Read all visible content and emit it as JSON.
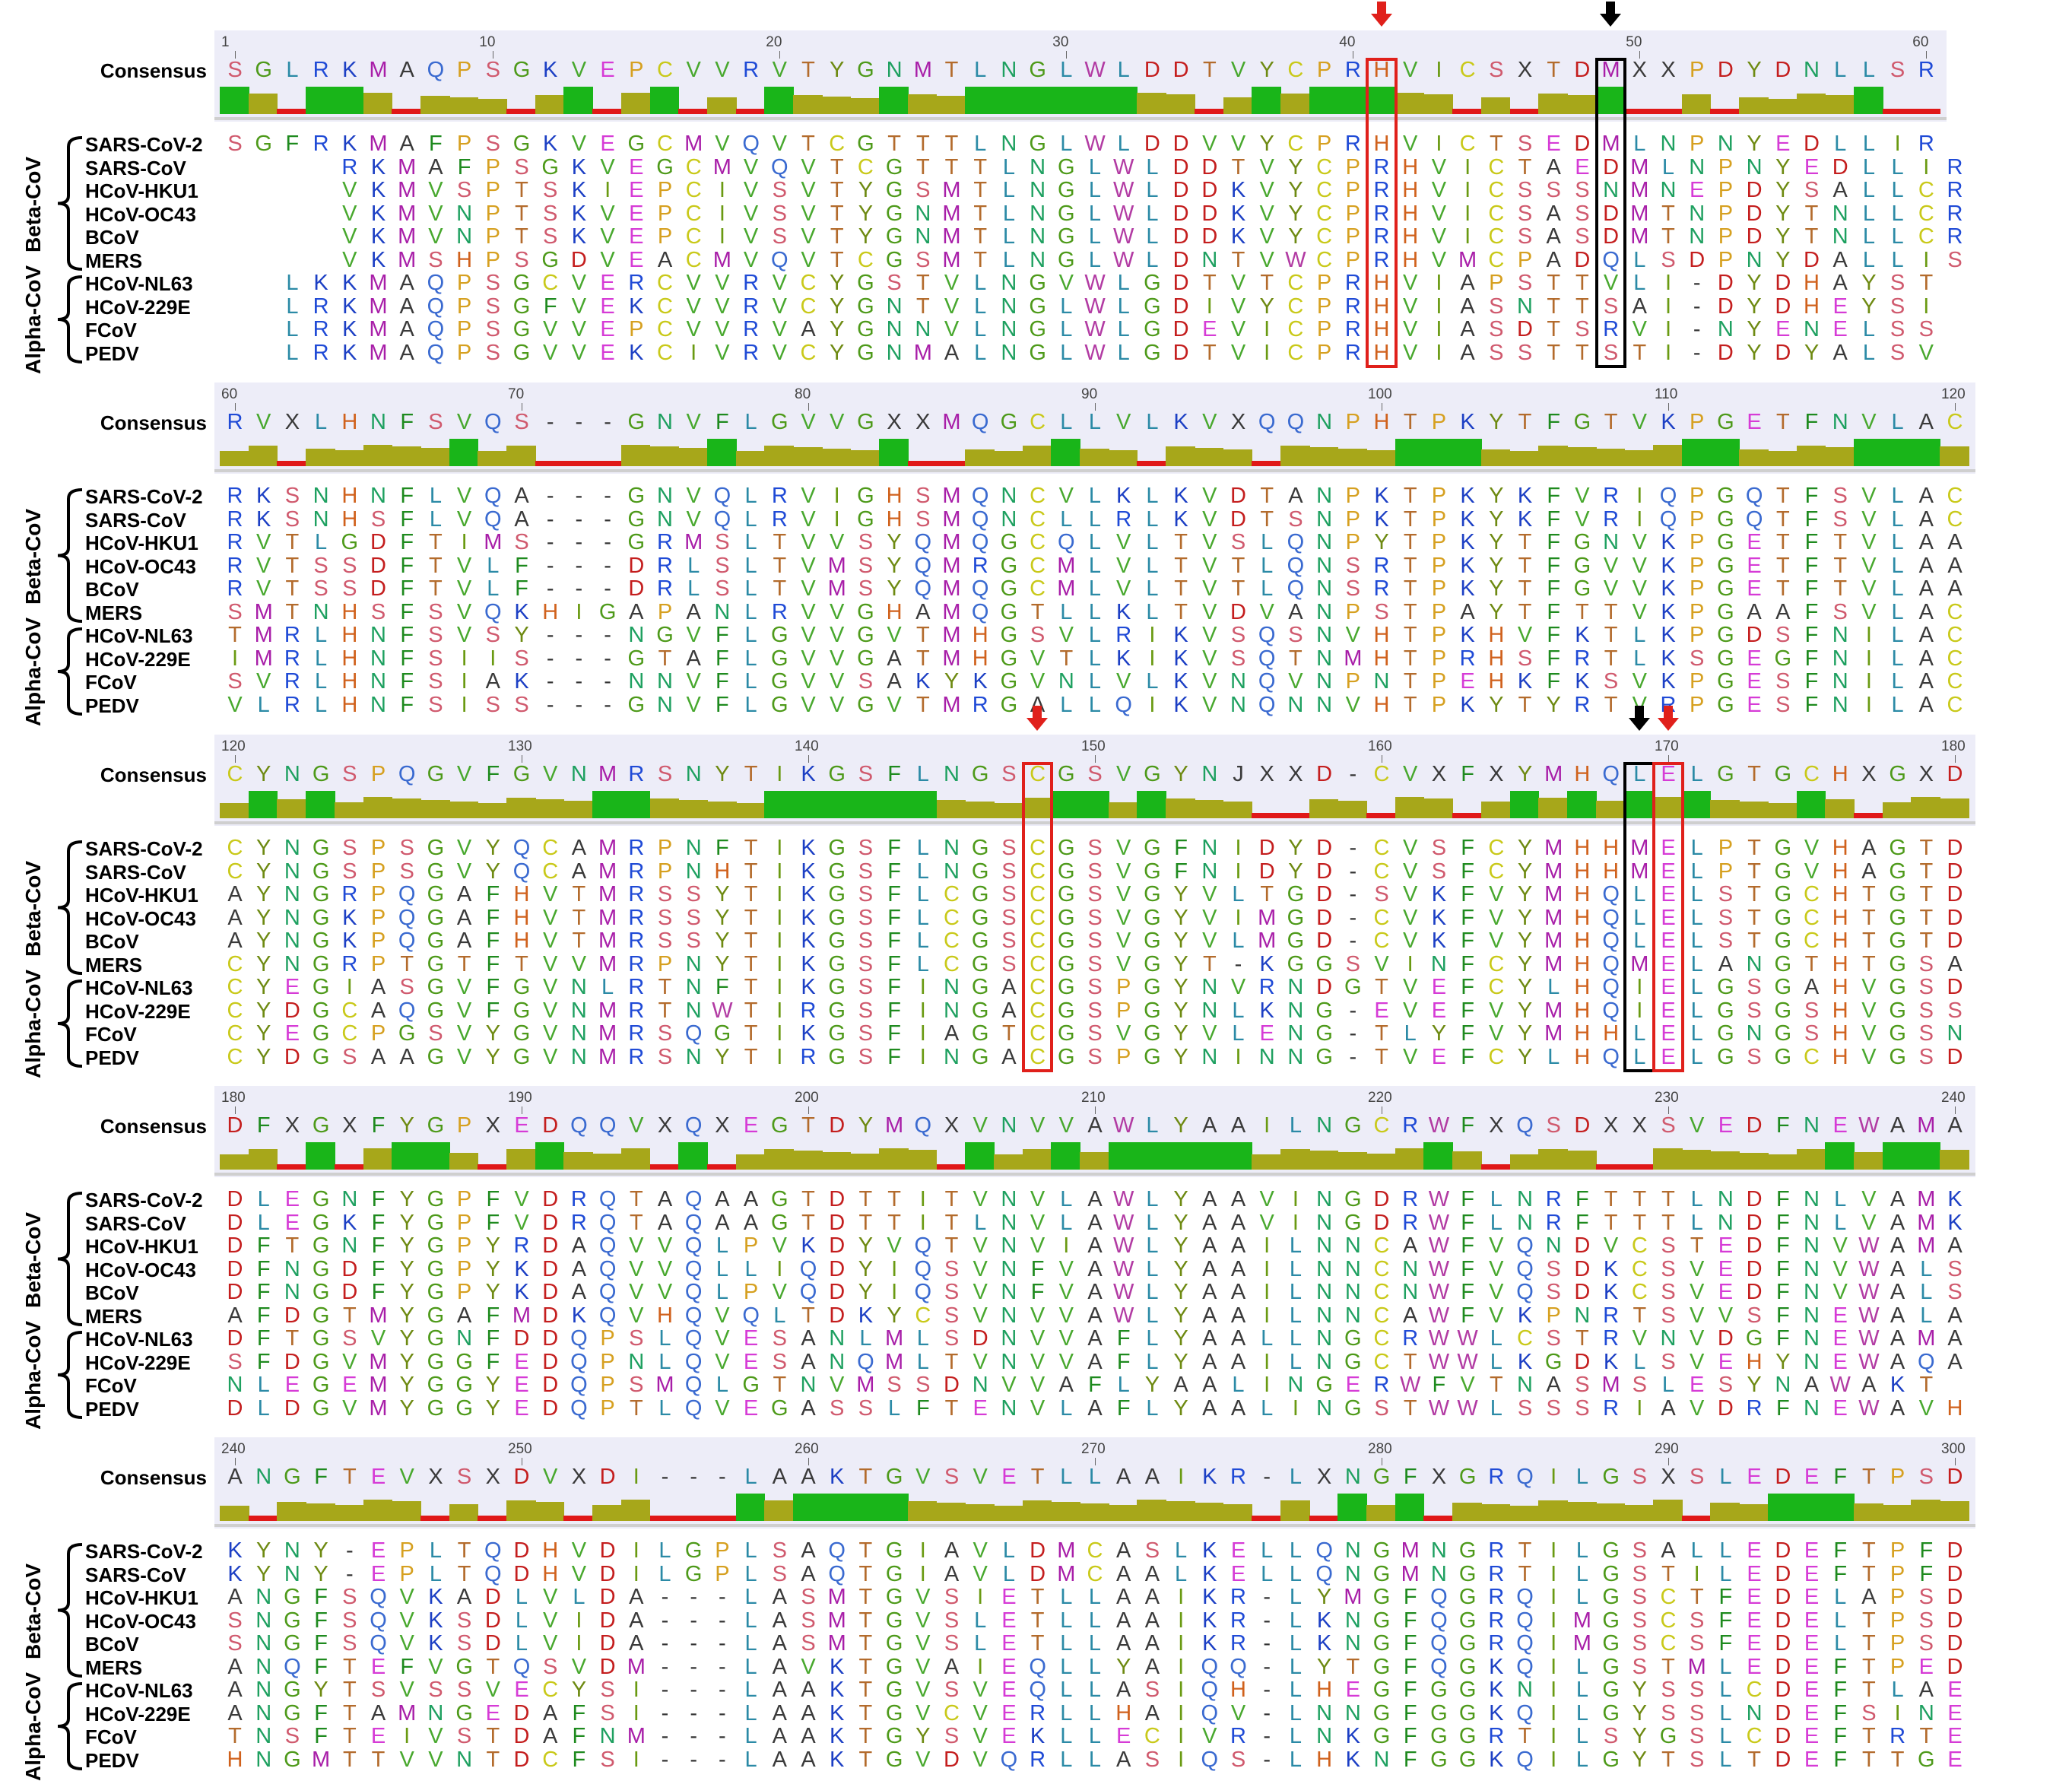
{
  "consensus_label": "Consensus",
  "groups": [
    {
      "name": "Beta-CoV",
      "members": [
        0,
        5
      ]
    },
    {
      "name": "Alpha-CoV",
      "members": [
        6,
        9
      ]
    }
  ],
  "sequence_names": [
    "SARS-CoV-2",
    "SARS-CoV",
    "HCoV-HKU1",
    "HCoV-OC43",
    "BCoV",
    "MERS",
    "HCoV-NL63",
    "HCoV-229E",
    "FCoV",
    "PEDV"
  ],
  "blocks": [
    {
      "start": 1,
      "ruler": [
        {
          "label": "1",
          "col": 0
        },
        {
          "label": "10",
          "col": 9
        },
        {
          "label": "20",
          "col": 19
        },
        {
          "label": "30",
          "col": 29
        },
        {
          "label": "40",
          "col": 39
        },
        {
          "label": "50",
          "col": 49
        },
        {
          "label": "60",
          "col": 59
        }
      ],
      "consensus": "SGLRKMAQPSGKVEPCVVRVTYGNMTLNGLWLDDTVYCPRHVICSXTDMXXPDYDNLLSR",
      "seqs": [
        "SGFRKMAFPSGKVEGCMVQVTCGTTTLNGLWLDDVVYCPRHVICTSEDMLNPNYEDLLIR",
        "    RKMAFPSGKVEGCMVQVTCGTTTLNGLWLDDTVYCPRHVICTAEDMLNPNYEDLLIR",
        "    VKMVSPTSKIEPCIVSVTYGSMTLNGLWLDDKVYCPRHVICSSSNMNEPDYSALLCR",
        "    VKMVNPTSKVEPCIVSVTYGNMTLNGLWLDDKVYCPRHVICSASDMTNPDYTNLLCR",
        "    VKMVNPTSKVEPCIVSVTYGNMTLNGLWLDDKVYCPRHVICSASDMTNPDYTNLLCR",
        "    VKMSHPSGDVEACMVQVTCGSMTLNGLWLDNTVWCPRHVMCPADQLSDPNYDALLIS",
        "  LKKMAQPSGCVERCVVRVCYGSTVLNGVWLGDTVTCPRHVIAPSTTVLI-DYDHAYST",
        "  LRKMAQPSGFVEKCVVRVCYGNTVLNGLWLGDIVYCPRHVIASNTTSAI-DYDHEYSI",
        "  LRKMAQPSGVVEPCVVRVAYGNNVLNGLWLGDEVICPRHVIASDTSRVI-NYENELSS",
        "  LRKMAQPSGVVEKCIVRVCYGNMALNGLWLGDTVICPRHVIASSTTSTI-DYDYALSV"
      ],
      "cons_bars": [
        2,
        1,
        0,
        2,
        2,
        1,
        0,
        1,
        1,
        1,
        0,
        1,
        2,
        0,
        1,
        2,
        0,
        1,
        0,
        2,
        1,
        1,
        1,
        2,
        1,
        1,
        2,
        2,
        2,
        2,
        2,
        2,
        1,
        1,
        0,
        1,
        2,
        1,
        2,
        2,
        2,
        1,
        1,
        0,
        1,
        0,
        1,
        1,
        2,
        0,
        0,
        1,
        0,
        1,
        1,
        1,
        1,
        2,
        0,
        0
      ],
      "highlights": [
        {
          "col": 40,
          "color": "#e0201b",
          "arrow": "#e0201b"
        },
        {
          "col": 48,
          "color": "#000000",
          "arrow": "#000000"
        }
      ]
    },
    {
      "start": 60,
      "ruler": [
        {
          "label": "60",
          "col": 0
        },
        {
          "label": "70",
          "col": 10
        },
        {
          "label": "80",
          "col": 20
        },
        {
          "label": "90",
          "col": 30
        },
        {
          "label": "100",
          "col": 40
        },
        {
          "label": "110",
          "col": 50
        },
        {
          "label": "120",
          "col": 60
        }
      ],
      "consensus": "RVXLHNFSVQS---GNVFLGVVGXXMQGCLLVLKVXQQNPHTPKYTFGTVKPGETFNVLAC",
      "seqs": [
        "RKSNHNFLVQA---GNVQLRVIGHSMQNCVLKLKVDTANPKTPKYKFVRIQPGQTFSVLAC",
        "RKSNHSFLVQA---GNVQLRVIGHSMQNCLLRLKVDTSNPKTPKYKFVRIQPGQTFSVLAC",
        "RVTLGDFTIMS---GRMSLTVVSYQMQGCQLVLTVSLQNPYTPKYTFGNVKPGETFTVLAA",
        "RVTSSDFTVLF---DRLSLTVMSYQMRGCMLVLTVTLQNSRTPKYTFGVVKPGETFTVLAA",
        "RVTSSDFTVLF---DRLSLTVMSYQMQGCMLVLTVTLQNSRTPKYTFGVVKPGETFTVLAA",
        "SMTNHSFSVQKHIGAPANLRVVGHAMQGTLLKLTVDVANPSTPAYTFTTVKPGAAFSVLAC",
        "TMRLHNFSVSY---NGVFLGVVGVTMHGSVLRIKVSQSNVHTPKHVFKTLKPGDSFNILAC",
        "IMRLHNFSIIS---GTAFLGVVGATMHGVTLKIKVSQTNMHTPRHSFRTLKSGEGFNILAC",
        "SVRLHNFSIAK---NNVFLGVVSAKYKGVNLVLKVNQVNPNTPEHKFKSVKPGESFNILAC",
        "VLRLHNFSISS---GNVFLGVVGVTMRGALLQIKVNQNNVHTPKYTYRTVRPGESFNILAC"
      ],
      "cons_bars": [
        1,
        1,
        0,
        1,
        1,
        1,
        1,
        1,
        2,
        1,
        1,
        0,
        0,
        0,
        1,
        1,
        1,
        2,
        1,
        1,
        1,
        1,
        1,
        2,
        0,
        0,
        1,
        1,
        1,
        2,
        1,
        1,
        0,
        1,
        1,
        1,
        0,
        1,
        1,
        1,
        1,
        2,
        2,
        2,
        1,
        1,
        1,
        1,
        1,
        1,
        1,
        2,
        2,
        1,
        1,
        1,
        1,
        2,
        2,
        2,
        1
      ],
      "highlights": []
    },
    {
      "start": 120,
      "ruler": [
        {
          "label": "120",
          "col": 0
        },
        {
          "label": "130",
          "col": 10
        },
        {
          "label": "140",
          "col": 20
        },
        {
          "label": "150",
          "col": 30
        },
        {
          "label": "160",
          "col": 40
        },
        {
          "label": "170",
          "col": 50
        },
        {
          "label": "180",
          "col": 60
        }
      ],
      "consensus": "CYNGSPQGVFGVNMRSNYTIKGSFLNGSCGSVGYNJXXD-CVXFXYMHQLELGTGCHXGXD",
      "seqs": [
        "CYNGSPSGVYQCAMRPNFTIKGSFLNGSCGSVGFNIDYD-CVSFCYMHHMELPTGVHAGTD",
        "CYNGSPSGVYQCAMRPNHTIKGSFLNGSCGSVGFNIDYD-CVSFCYMHHMELPTGVHAGTD",
        "AYNGRPQGAFHVTMRSSYTIKGSFLCGSCGSVGYVLTGD-SVKFVYMHQLELSTGCHTGTD",
        "AYNGKPQGAFHVTMRSSYTIKGSFLCGSCGSVGYVIMGD-CVKFVYMHQLELSTGCHTGTD",
        "AYNGKPQGAFHVTMRSSYTIKGSFLCGSCGSVGYVLMGD-CVKFVYMHQLELSTGCHTGTD",
        "CYNGRPTGTFTVVMRPNYTIKGSFLCGSCGSVGYT-KGGSVINFCYMHQMELANGTHTGSA",
        "CYEGIASGVFGVNLRTNFTIKGSFINGACGSPGYNVRNDGTVEFCYLHQIELGSGAHVGSD",
        "CYDGCAQGVFGVNMRTNWTIRGSFINGACGSPGYNLKNG-EVEFVYMHQIELGSGSHVGSS",
        "CYEGCPGSVYGVNMRSQGTIKGSFIAGTCGSVGYVLENG-TLYFVYMHHLELGNGSHVGSN",
        "CYDGSAAGVYGVNMRSNYTIRGSFINGACGSPGYNINNG-TVEFCYLHQLELGSGCHVGSD"
      ],
      "cons_bars": [
        1,
        2,
        1,
        2,
        1,
        1,
        1,
        1,
        1,
        1,
        1,
        1,
        1,
        2,
        2,
        1,
        1,
        1,
        1,
        2,
        2,
        2,
        2,
        2,
        2,
        1,
        1,
        1,
        1,
        2,
        2,
        1,
        2,
        1,
        1,
        1,
        0,
        0,
        1,
        1,
        0,
        1,
        1,
        0,
        1,
        2,
        1,
        2,
        1,
        2,
        1,
        2,
        1,
        1,
        1,
        2,
        1,
        0,
        1,
        1,
        1
      ],
      "highlights": [
        {
          "col": 28,
          "color": "#e0201b",
          "arrow": "#e0201b"
        },
        {
          "col": 49,
          "color": "#000000",
          "arrow": "#000000"
        },
        {
          "col": 50,
          "color": "#e0201b",
          "arrow": "#e0201b"
        }
      ]
    },
    {
      "start": 180,
      "ruler": [
        {
          "label": "180",
          "col": 0
        },
        {
          "label": "190",
          "col": 10
        },
        {
          "label": "200",
          "col": 20
        },
        {
          "label": "210",
          "col": 30
        },
        {
          "label": "220",
          "col": 40
        },
        {
          "label": "230",
          "col": 50
        },
        {
          "label": "240",
          "col": 60
        }
      ],
      "consensus": "DFXGXFYGPXEDQQVXQXEGTDYMQXVNVVAWLYAAILNGCRWFXQSDXXSVEDFNEWAMA",
      "seqs": [
        "DLEGNFYGPFVDRQTAQAAGTDTTITVNVLAWLYAAVINGDRWFLNRFTTTLNDFNLVAMK",
        "DLEGKFYGPFVDRQTAQAAGTDTTITLNVLAWLYAAVINGDRWFLNRFTTTLNDFNLVAMK",
        "DFTGNFYGPYRDAQVVQLPVKDYVQTVNVIAWLYAAILNNCAWFVQNDVCSTEDFNVWAMA",
        "DFNGDFYGPYKDAQVVQLLIQDYIQSVNFVAWLYAAILNNCNWFVQSDKCSVEDFNVWALS",
        "DFNGDFYGPYKDAQVVQLPVQDYIQSVNFVAWLYAAILNNCNWFVQSDKCSVEDFNVWALS",
        "AFDGTMYGAFMDKQVHQVQLTDKYCSVNVVAWLYAAILNNCAWFVKPNRTSVVSFNEWALA",
        "DFTGSVYGNFDDQPSLQVESANLMLSDNVVAFLYAALLNGCRWWLCSTRVNVDGFNEWAMA",
        "SFDGVMYGGFEDQPNLQVESANQMLTVNVVAFLYAAILNGCTWWLKGDKLSVEHYNEWAQA",
        "NLEGEMYGGYEDQPSMQLGTNVMSSDNVVAFLYAALINGERWFVTNASMSLESYNAWAKT",
        "DLDGVMYGGYEDQPTLQVEGASSLFTENVLAFLYAALINGSTWWLSSSRIAVDRFNEWAVH"
      ],
      "cons_bars": [
        1,
        1,
        0,
        2,
        0,
        1,
        2,
        2,
        1,
        0,
        1,
        2,
        1,
        1,
        1,
        0,
        2,
        0,
        1,
        1,
        1,
        1,
        1,
        1,
        1,
        0,
        2,
        1,
        1,
        2,
        1,
        2,
        2,
        2,
        2,
        2,
        1,
        1,
        1,
        1,
        1,
        1,
        2,
        1,
        0,
        1,
        1,
        1,
        0,
        0,
        1,
        1,
        1,
        1,
        1,
        1,
        2,
        1,
        2,
        2,
        1
      ],
      "highlights": []
    },
    {
      "start": 240,
      "ruler": [
        {
          "label": "240",
          "col": 0
        },
        {
          "label": "250",
          "col": 10
        },
        {
          "label": "260",
          "col": 20
        },
        {
          "label": "270",
          "col": 30
        },
        {
          "label": "280",
          "col": 40
        },
        {
          "label": "290",
          "col": 50
        },
        {
          "label": "300",
          "col": 60
        }
      ],
      "consensus": "ANGFTEVXSXDVXDI---LAAKTGVSVETLLAAIKR-LXNGFXGRQILGSXSLEDEFTPSD",
      "seqs": [
        "KYNY-EPLTQDHVDILGPLSAQTGIAVLDMCASLKELLQNGMNGRTILGSALLEDEFTPFD",
        "KYNY-EPLTQDHVDILGPLSAQTGIAVLDMCAALKELLQNGMNGRTILGSTILEDEFTPFD",
        "ANGFSQVKADLVLDA---LASMTGVSIETLLAAIKR-LYMGFQGRQILGSCTFEDELAPSD",
        "SNGFSQVKSDLVIDA---LASMTGVSLETLLAAIKR-LKNGFQGRQIMGSCSFEDELTPSD",
        "SNGFSQVKSDLVIDA---LASMTGVSLETLLAAIKR-LKNGFQGRQIMGSCSFEDELTPSD",
        "ANQFTEFVGTQSVDM---LAVKTGVAIEQLLYAIQQ-LYTGFQGKQILGSTMLEDEFTPED",
        "ANGYTSVSSVECYSI---LAAKTGVSVEQLLASIQH-LHEGFGGKNILGYSSLCDEFTLAE",
        "ANGFTAMNGEDAFSI---LAAKTGVCVERLLHAIQV-LNNGFGGKQILGYSSLNDEFSINE",
        "TNSFTEIVSTDAFNM---LAAKTGYSVEKLLECIVR-LNKGFGGRTILSYGSLCDEFTRTE",
        "HNGMTTVVNTDCFSI---LAAKTGVDVQRLLASIQS-LHKNFGGKQILGYTSLTDEFTTGE"
      ],
      "cons_bars": [
        1,
        0,
        1,
        1,
        1,
        1,
        1,
        0,
        1,
        0,
        1,
        1,
        0,
        1,
        1,
        0,
        0,
        0,
        2,
        1,
        2,
        2,
        2,
        2,
        1,
        1,
        1,
        1,
        1,
        1,
        1,
        1,
        1,
        1,
        1,
        1,
        0,
        1,
        0,
        2,
        1,
        2,
        0,
        1,
        1,
        1,
        1,
        1,
        1,
        1,
        1,
        0,
        1,
        1,
        2,
        2,
        2,
        1,
        1,
        1,
        1
      ],
      "highlights": []
    }
  ],
  "colors": {
    "A": "#3a3a3a",
    "C": "#c9c91a",
    "D": "#c41e1e",
    "E": "#d63bd6",
    "F": "#1e8a1e",
    "G": "#4e9a1a",
    "H": "#d0611c",
    "I": "#6a9a12",
    "K": "#1c3fc4",
    "L": "#2b8aa6",
    "M": "#a81ea8",
    "N": "#1ea060",
    "P": "#d6a020",
    "Q": "#3a6ad0",
    "R": "#1f4ad6",
    "S": "#d05a6e",
    "T": "#b36b2c",
    "V": "#48a82e",
    "W": "#b23ba3",
    "Y": "#6e8a12",
    "X": "#3a3a3a",
    "J": "#3a3a3a",
    "-": "#333333",
    "bar_high": "#19b519",
    "bar_mid": "#a7a71a",
    "bar_low": "#e01818"
  }
}
